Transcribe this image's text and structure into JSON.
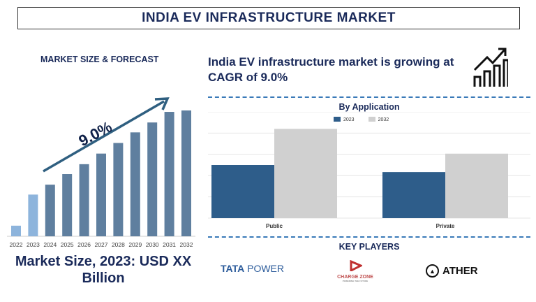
{
  "header": {
    "title": "INDIA EV INFRASTRUCTURE MARKET"
  },
  "left": {
    "subtitle": "MARKET SIZE & FORECAST",
    "cagr_label": "9.0%",
    "market_size": "Market Size, 2023: USD XX Billion"
  },
  "right": {
    "headline": "India EV infrastructure market is growing at CAGR of 9.0%",
    "icon": "growth-chart-icon"
  },
  "chart_data": [
    {
      "type": "bar",
      "title": "",
      "categories": [
        "2022",
        "2023",
        "2024",
        "2025",
        "2026",
        "2027",
        "2028",
        "2029",
        "2030",
        "2031",
        "2032"
      ],
      "values": [
        15,
        59,
        73,
        88,
        102,
        117,
        132,
        147,
        161,
        176,
        178
      ],
      "colors": {
        "history": "#8db4dc",
        "forecast": "#5f7f9f"
      },
      "annotation": "9.0%",
      "grid": false
    },
    {
      "type": "bar",
      "title": "By Application",
      "categories": [
        "Public",
        "Private"
      ],
      "series": [
        {
          "name": "2023",
          "values": [
            75,
            65
          ],
          "color": "#2e5d8a"
        },
        {
          "name": "2032",
          "values": [
            126,
            91
          ],
          "color": "#d0d0d0"
        }
      ],
      "legend": "top",
      "grid": true,
      "ylim": [
        0,
        150
      ]
    }
  ],
  "key_players": {
    "title": "KEY PLAYERS",
    "logos": [
      "TATA POWER",
      "CHARGE ZONE",
      "ATHER"
    ],
    "chargezone_tagline": "POWERING THE FUTURE"
  }
}
